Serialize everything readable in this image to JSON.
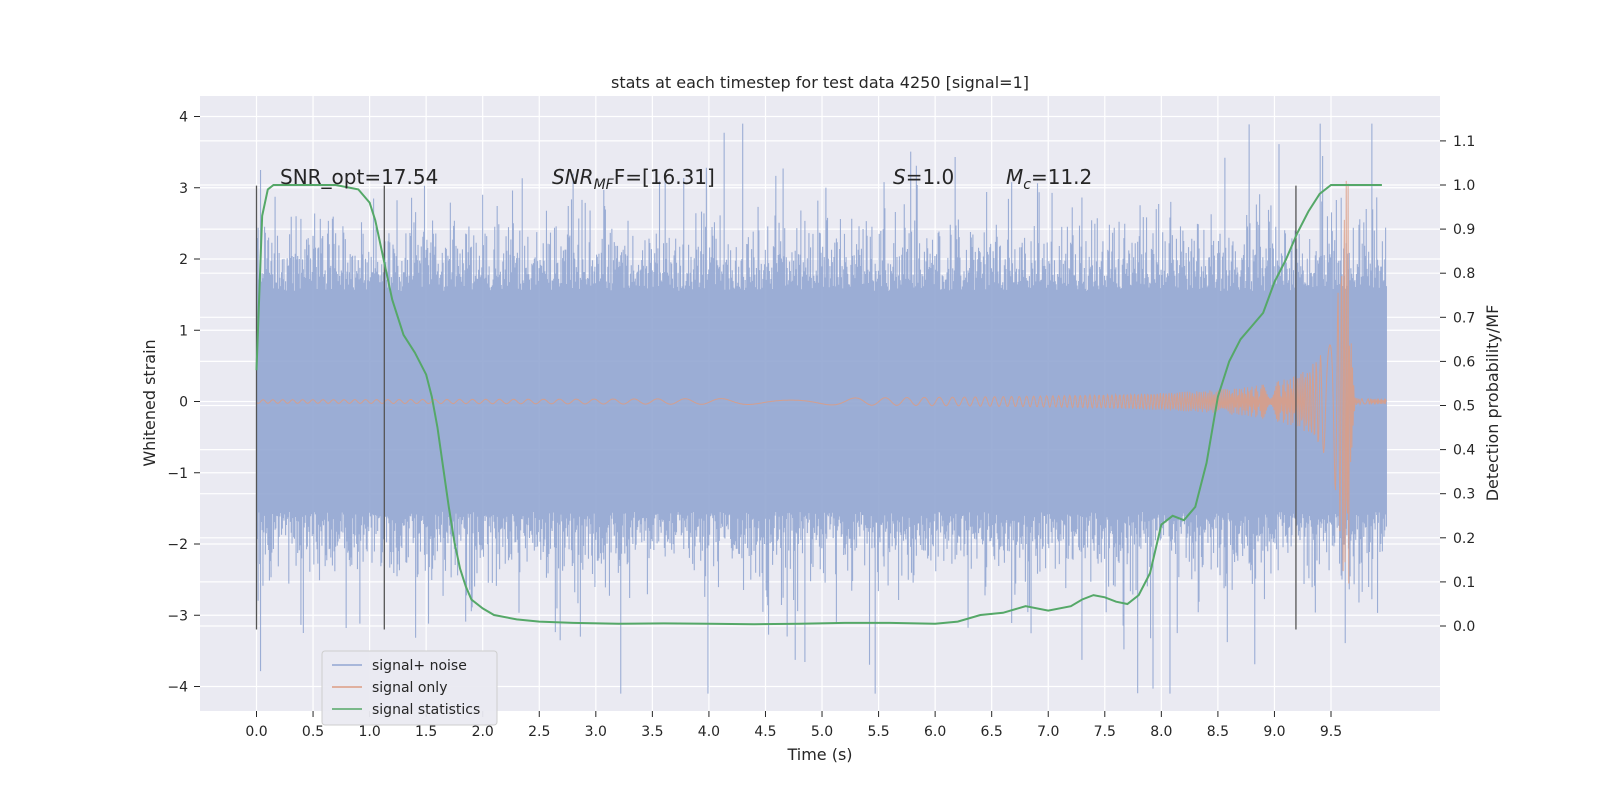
{
  "chart_data": {
    "type": "line",
    "title": "stats at each timestep for test data 4250 [signal=1]",
    "xlabel": "Time (s)",
    "ylabel_left": "Whitened strain",
    "ylabel_right": "Detection probability/MF",
    "xlim": [
      -0.5,
      10.5
    ],
    "ylim_left": [
      -4.4,
      4.3
    ],
    "ylim_right": [
      -0.2,
      1.2
    ],
    "x_ticks": [
      "0.0",
      "0.5",
      "1.0",
      "1.5",
      "2.0",
      "2.5",
      "3.0",
      "3.5",
      "4.0",
      "4.5",
      "5.0",
      "5.5",
      "6.0",
      "6.5",
      "7.0",
      "7.5",
      "8.0",
      "8.5",
      "9.0",
      "9.5"
    ],
    "x_tick_values": [
      0,
      0.5,
      1,
      1.5,
      2,
      2.5,
      3,
      3.5,
      4,
      4.5,
      5,
      5.5,
      6,
      6.5,
      7,
      7.5,
      8,
      8.5,
      9,
      9.5
    ],
    "y_ticks_left": [
      "−4",
      "−3",
      "−2",
      "−1",
      "0",
      "1",
      "2",
      "3",
      "4"
    ],
    "y_tick_values_left": [
      -4,
      -3,
      -2,
      -1,
      0,
      1,
      2,
      3,
      4
    ],
    "y_ticks_right": [
      "0.0",
      "0.1",
      "0.2",
      "0.3",
      "0.4",
      "0.5",
      "0.6",
      "0.7",
      "0.8",
      "0.9",
      "1.0",
      "1.1"
    ],
    "y_tick_values_right": [
      0,
      0.1,
      0.2,
      0.3,
      0.4,
      0.5,
      0.6,
      0.7,
      0.8,
      0.9,
      1.0,
      1.1
    ],
    "grid": true,
    "legend_position": "bottom-left",
    "annotations": {
      "snr_opt": "SNR_opt=17.54",
      "snr_mf_base": "SNR",
      "snr_mf_sub": "MF",
      "snr_mf_value": "F=[16.31]",
      "s_base": "S",
      "s_value": "=1.0",
      "mc_base": "M",
      "mc_sub": "c",
      "mc_value": "=11.2"
    },
    "vertical_lines_x": [
      0.0,
      1.13,
      9.19
    ],
    "noise_x_range": [
      0.0,
      9.99
    ],
    "noise_envelope_left": 1.8,
    "series": [
      {
        "name": "signal+ noise",
        "axis": "left",
        "color": "#92a6d1",
        "kind": "noise"
      },
      {
        "name": "signal only",
        "axis": "left",
        "color": "#dd9c83",
        "kind": "chirp",
        "chirp_end_x": 9.66,
        "chirp_peak": 3.1
      },
      {
        "name": "signal statistics",
        "axis": "right",
        "color": "#55a868",
        "x": [
          0.0,
          0.05,
          0.1,
          0.15,
          0.2,
          0.3,
          0.5,
          0.7,
          0.9,
          1.0,
          1.05,
          1.1,
          1.15,
          1.2,
          1.3,
          1.4,
          1.5,
          1.55,
          1.6,
          1.65,
          1.7,
          1.75,
          1.8,
          1.85,
          1.9,
          2.0,
          2.1,
          2.3,
          2.5,
          2.8,
          3.2,
          3.6,
          4.0,
          4.4,
          4.8,
          5.2,
          5.6,
          6.0,
          6.2,
          6.4,
          6.6,
          6.8,
          7.0,
          7.2,
          7.3,
          7.4,
          7.5,
          7.6,
          7.7,
          7.8,
          7.9,
          8.0,
          8.1,
          8.2,
          8.3,
          8.4,
          8.5,
          8.6,
          8.7,
          8.8,
          8.9,
          9.0,
          9.1,
          9.2,
          9.3,
          9.4,
          9.5,
          9.6,
          9.8,
          9.95
        ],
        "values": [
          0.58,
          0.93,
          0.99,
          1.0,
          1.0,
          1.0,
          1.0,
          1.0,
          0.99,
          0.96,
          0.92,
          0.86,
          0.8,
          0.74,
          0.66,
          0.62,
          0.57,
          0.52,
          0.45,
          0.36,
          0.27,
          0.19,
          0.13,
          0.09,
          0.06,
          0.04,
          0.025,
          0.015,
          0.01,
          0.007,
          0.005,
          0.006,
          0.005,
          0.004,
          0.005,
          0.007,
          0.007,
          0.005,
          0.01,
          0.025,
          0.03,
          0.045,
          0.035,
          0.045,
          0.06,
          0.07,
          0.065,
          0.055,
          0.05,
          0.07,
          0.12,
          0.23,
          0.25,
          0.24,
          0.27,
          0.37,
          0.52,
          0.6,
          0.65,
          0.68,
          0.71,
          0.78,
          0.83,
          0.89,
          0.94,
          0.98,
          1.0,
          1.0,
          1.0,
          1.0
        ]
      }
    ]
  }
}
